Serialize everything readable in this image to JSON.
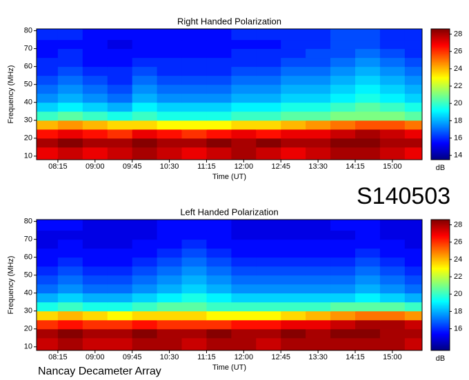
{
  "header": {
    "id": "S140503"
  },
  "footer": "Nancay Decameter Array",
  "chart_data": [
    {
      "type": "heatmap",
      "title": "Right Handed Polarization",
      "x_label": "Time (UT)",
      "y_label": "Frequency (MHz)",
      "colorbar_label": "dB",
      "colormap": "jet",
      "x": [
        8.0,
        8.5,
        9.0,
        9.5,
        10.0,
        10.5,
        11.0,
        11.5,
        12.0,
        12.5,
        13.0,
        13.5,
        14.0,
        14.5,
        15.0,
        15.5
      ],
      "y": [
        12.5,
        17.5,
        22.5,
        27.5,
        32.5,
        37.5,
        42.5,
        47.5,
        52.5,
        57.5,
        62.5,
        67.5,
        72.5,
        77.5
      ],
      "z": [
        [
          27,
          27.5,
          27,
          27.5,
          28,
          27.5,
          27,
          27.5,
          28,
          27.5,
          27,
          27.5,
          28,
          28,
          27.5,
          27
        ],
        [
          28,
          28.5,
          28,
          28,
          28.5,
          28,
          28,
          28.5,
          28,
          28.5,
          28,
          28,
          28.5,
          28.5,
          28,
          28
        ],
        [
          26.5,
          27,
          26.5,
          26,
          27,
          26.5,
          26,
          26.5,
          27,
          26.5,
          27,
          27,
          27.5,
          28,
          27.5,
          27
        ],
        [
          24,
          24.5,
          24,
          23.5,
          23.5,
          23,
          23,
          23,
          23.5,
          23.5,
          24,
          24.5,
          25,
          25.5,
          25.5,
          25
        ],
        [
          20,
          20.5,
          20,
          19.5,
          20,
          19.5,
          19.5,
          19.5,
          20,
          20,
          20.5,
          20.5,
          21,
          21,
          21,
          20.5
        ],
        [
          18.5,
          19,
          18.5,
          18,
          19,
          18.5,
          18.5,
          18.5,
          19,
          19,
          19.5,
          19.5,
          20,
          20.5,
          20,
          19.5
        ],
        [
          17.5,
          18,
          17.5,
          17,
          18,
          17.5,
          17.5,
          17.5,
          18,
          18,
          18.5,
          18.5,
          19,
          19.5,
          19,
          18.5
        ],
        [
          17,
          17.5,
          17,
          16.5,
          17.5,
          17,
          17,
          17,
          17.5,
          17.5,
          18,
          18,
          18.5,
          19,
          18.5,
          18
        ],
        [
          16.5,
          17,
          16.5,
          16,
          17,
          16.5,
          16.5,
          16.5,
          17,
          17,
          17.5,
          17.5,
          18,
          18.5,
          18,
          17.5
        ],
        [
          16,
          16.5,
          16,
          16,
          16.5,
          16,
          16,
          16,
          16.5,
          16.5,
          17,
          17,
          17.5,
          18,
          17.5,
          17
        ],
        [
          16,
          16,
          15.5,
          15.5,
          16,
          16,
          16,
          16,
          16,
          16,
          16.5,
          16.5,
          17,
          17.5,
          17,
          16.5
        ],
        [
          15.5,
          16,
          15.5,
          15.5,
          15.5,
          15.5,
          15.5,
          15.5,
          16,
          16,
          16,
          16.5,
          16.5,
          17,
          16.5,
          16
        ],
        [
          15.5,
          15.5,
          15.5,
          15,
          15.5,
          15.5,
          15.5,
          15.5,
          15.5,
          15.5,
          16,
          16,
          16.5,
          16.5,
          16,
          16
        ],
        [
          16,
          16,
          15.5,
          15.5,
          15.5,
          15.5,
          15.5,
          15.5,
          16,
          16,
          16,
          16,
          16.5,
          16.5,
          16,
          16
        ]
      ],
      "xlim": [
        7.82,
        15.6
      ],
      "xticks": [
        {
          "value": 8.25,
          "label": "08:15"
        },
        {
          "value": 9,
          "label": "09:00"
        },
        {
          "value": 9.75,
          "label": "09:45"
        },
        {
          "value": 10.5,
          "label": "10:30"
        },
        {
          "value": 11.25,
          "label": "11:15"
        },
        {
          "value": 12,
          "label": "12:00"
        },
        {
          "value": 12.75,
          "label": "12:45"
        },
        {
          "value": 13.5,
          "label": "13:30"
        },
        {
          "value": 14.25,
          "label": "14:15"
        },
        {
          "value": 15,
          "label": "15:00"
        }
      ],
      "ylim": [
        8,
        81
      ],
      "yticks": [
        10,
        20,
        30,
        40,
        50,
        60,
        70,
        80
      ],
      "clim": [
        13.5,
        28.6
      ],
      "cticks": [
        14,
        16,
        18,
        20,
        22,
        24,
        26,
        28
      ]
    },
    {
      "type": "heatmap",
      "title": "Left Handed Polarization",
      "x_label": "Time (UT)",
      "y_label": "Frequency (MHz)",
      "colorbar_label": "dB",
      "colormap": "jet",
      "x": [
        8.0,
        8.5,
        9.0,
        9.5,
        10.0,
        10.5,
        11.0,
        11.5,
        12.0,
        12.5,
        13.0,
        13.5,
        14.0,
        14.5,
        15.0,
        15.5
      ],
      "y": [
        12.5,
        17.5,
        22.5,
        27.5,
        32.5,
        37.5,
        42.5,
        47.5,
        52.5,
        57.5,
        62.5,
        67.5,
        72.5,
        77.5
      ],
      "z": [
        [
          27.5,
          28,
          27.5,
          27.5,
          28,
          28,
          27.5,
          28,
          28,
          27.5,
          28,
          28,
          28,
          28,
          28,
          27.5
        ],
        [
          28,
          28.5,
          28,
          28,
          28.5,
          28,
          28,
          28.5,
          28,
          28,
          28.5,
          28,
          28.5,
          28.5,
          28,
          28
        ],
        [
          26,
          26.5,
          26,
          26,
          26.5,
          26,
          26,
          26,
          26.5,
          26.5,
          27,
          27,
          27.5,
          28,
          28,
          27.5
        ],
        [
          23.5,
          24,
          23.5,
          23,
          23.5,
          23.5,
          23.5,
          23,
          23,
          23,
          23.5,
          24,
          24.5,
          25,
          25,
          24.5
        ],
        [
          19.5,
          20,
          19.5,
          19.5,
          20,
          20.5,
          20.5,
          20,
          20,
          20,
          20,
          20,
          20.5,
          20.5,
          20.5,
          20
        ],
        [
          18,
          18.5,
          18,
          18,
          18.5,
          19,
          19.5,
          19,
          18.5,
          18.5,
          18.5,
          18.5,
          18.5,
          19,
          18.5,
          18
        ],
        [
          17,
          17.5,
          17,
          17,
          17.5,
          18,
          18.5,
          18,
          17.5,
          17.5,
          17.5,
          17.5,
          17.5,
          18,
          17.5,
          17
        ],
        [
          16.5,
          17,
          16.5,
          16.5,
          17,
          17.5,
          18,
          17.5,
          17,
          17,
          17,
          17,
          17,
          17.5,
          17,
          16.5
        ],
        [
          16,
          16.5,
          16,
          16,
          16.5,
          17,
          17.5,
          17,
          16.5,
          16.5,
          16.5,
          16.5,
          16.5,
          17,
          16.5,
          16
        ],
        [
          15.5,
          16,
          15.5,
          15.5,
          16,
          16.5,
          17,
          16.5,
          16,
          16,
          16,
          16,
          16,
          16.5,
          16,
          15.5
        ],
        [
          15.5,
          15.5,
          15.5,
          15.5,
          15.5,
          16,
          16.5,
          16,
          15.5,
          15.5,
          15.5,
          15.5,
          15.5,
          16,
          15.5,
          15.5
        ],
        [
          15,
          15.5,
          15,
          15,
          15.5,
          15.5,
          16,
          15.5,
          15.5,
          15.5,
          15.5,
          15.5,
          15.5,
          15.5,
          15.5,
          15
        ],
        [
          15,
          15,
          15,
          15,
          15,
          15.5,
          15.5,
          15.5,
          15,
          15,
          15,
          15,
          15,
          15.5,
          15,
          15
        ],
        [
          15.5,
          15.5,
          15,
          15,
          15,
          15.5,
          15.5,
          15.5,
          15,
          15,
          15,
          15,
          15.5,
          15.5,
          15,
          15
        ]
      ],
      "xlim": [
        7.82,
        15.6
      ],
      "xticks": [
        {
          "value": 8.25,
          "label": "08:15"
        },
        {
          "value": 9,
          "label": "09:00"
        },
        {
          "value": 9.75,
          "label": "09:45"
        },
        {
          "value": 10.5,
          "label": "10:30"
        },
        {
          "value": 11.25,
          "label": "11:15"
        },
        {
          "value": 12,
          "label": "12:00"
        },
        {
          "value": 12.75,
          "label": "12:45"
        },
        {
          "value": 13.5,
          "label": "13:30"
        },
        {
          "value": 14.25,
          "label": "14:15"
        },
        {
          "value": 15,
          "label": "15:00"
        }
      ],
      "ylim": [
        8,
        81
      ],
      "yticks": [
        10,
        20,
        30,
        40,
        50,
        60,
        70,
        80
      ],
      "clim": [
        13.5,
        28.6
      ],
      "cticks": [
        16,
        18,
        20,
        22,
        24,
        26,
        28
      ]
    }
  ]
}
